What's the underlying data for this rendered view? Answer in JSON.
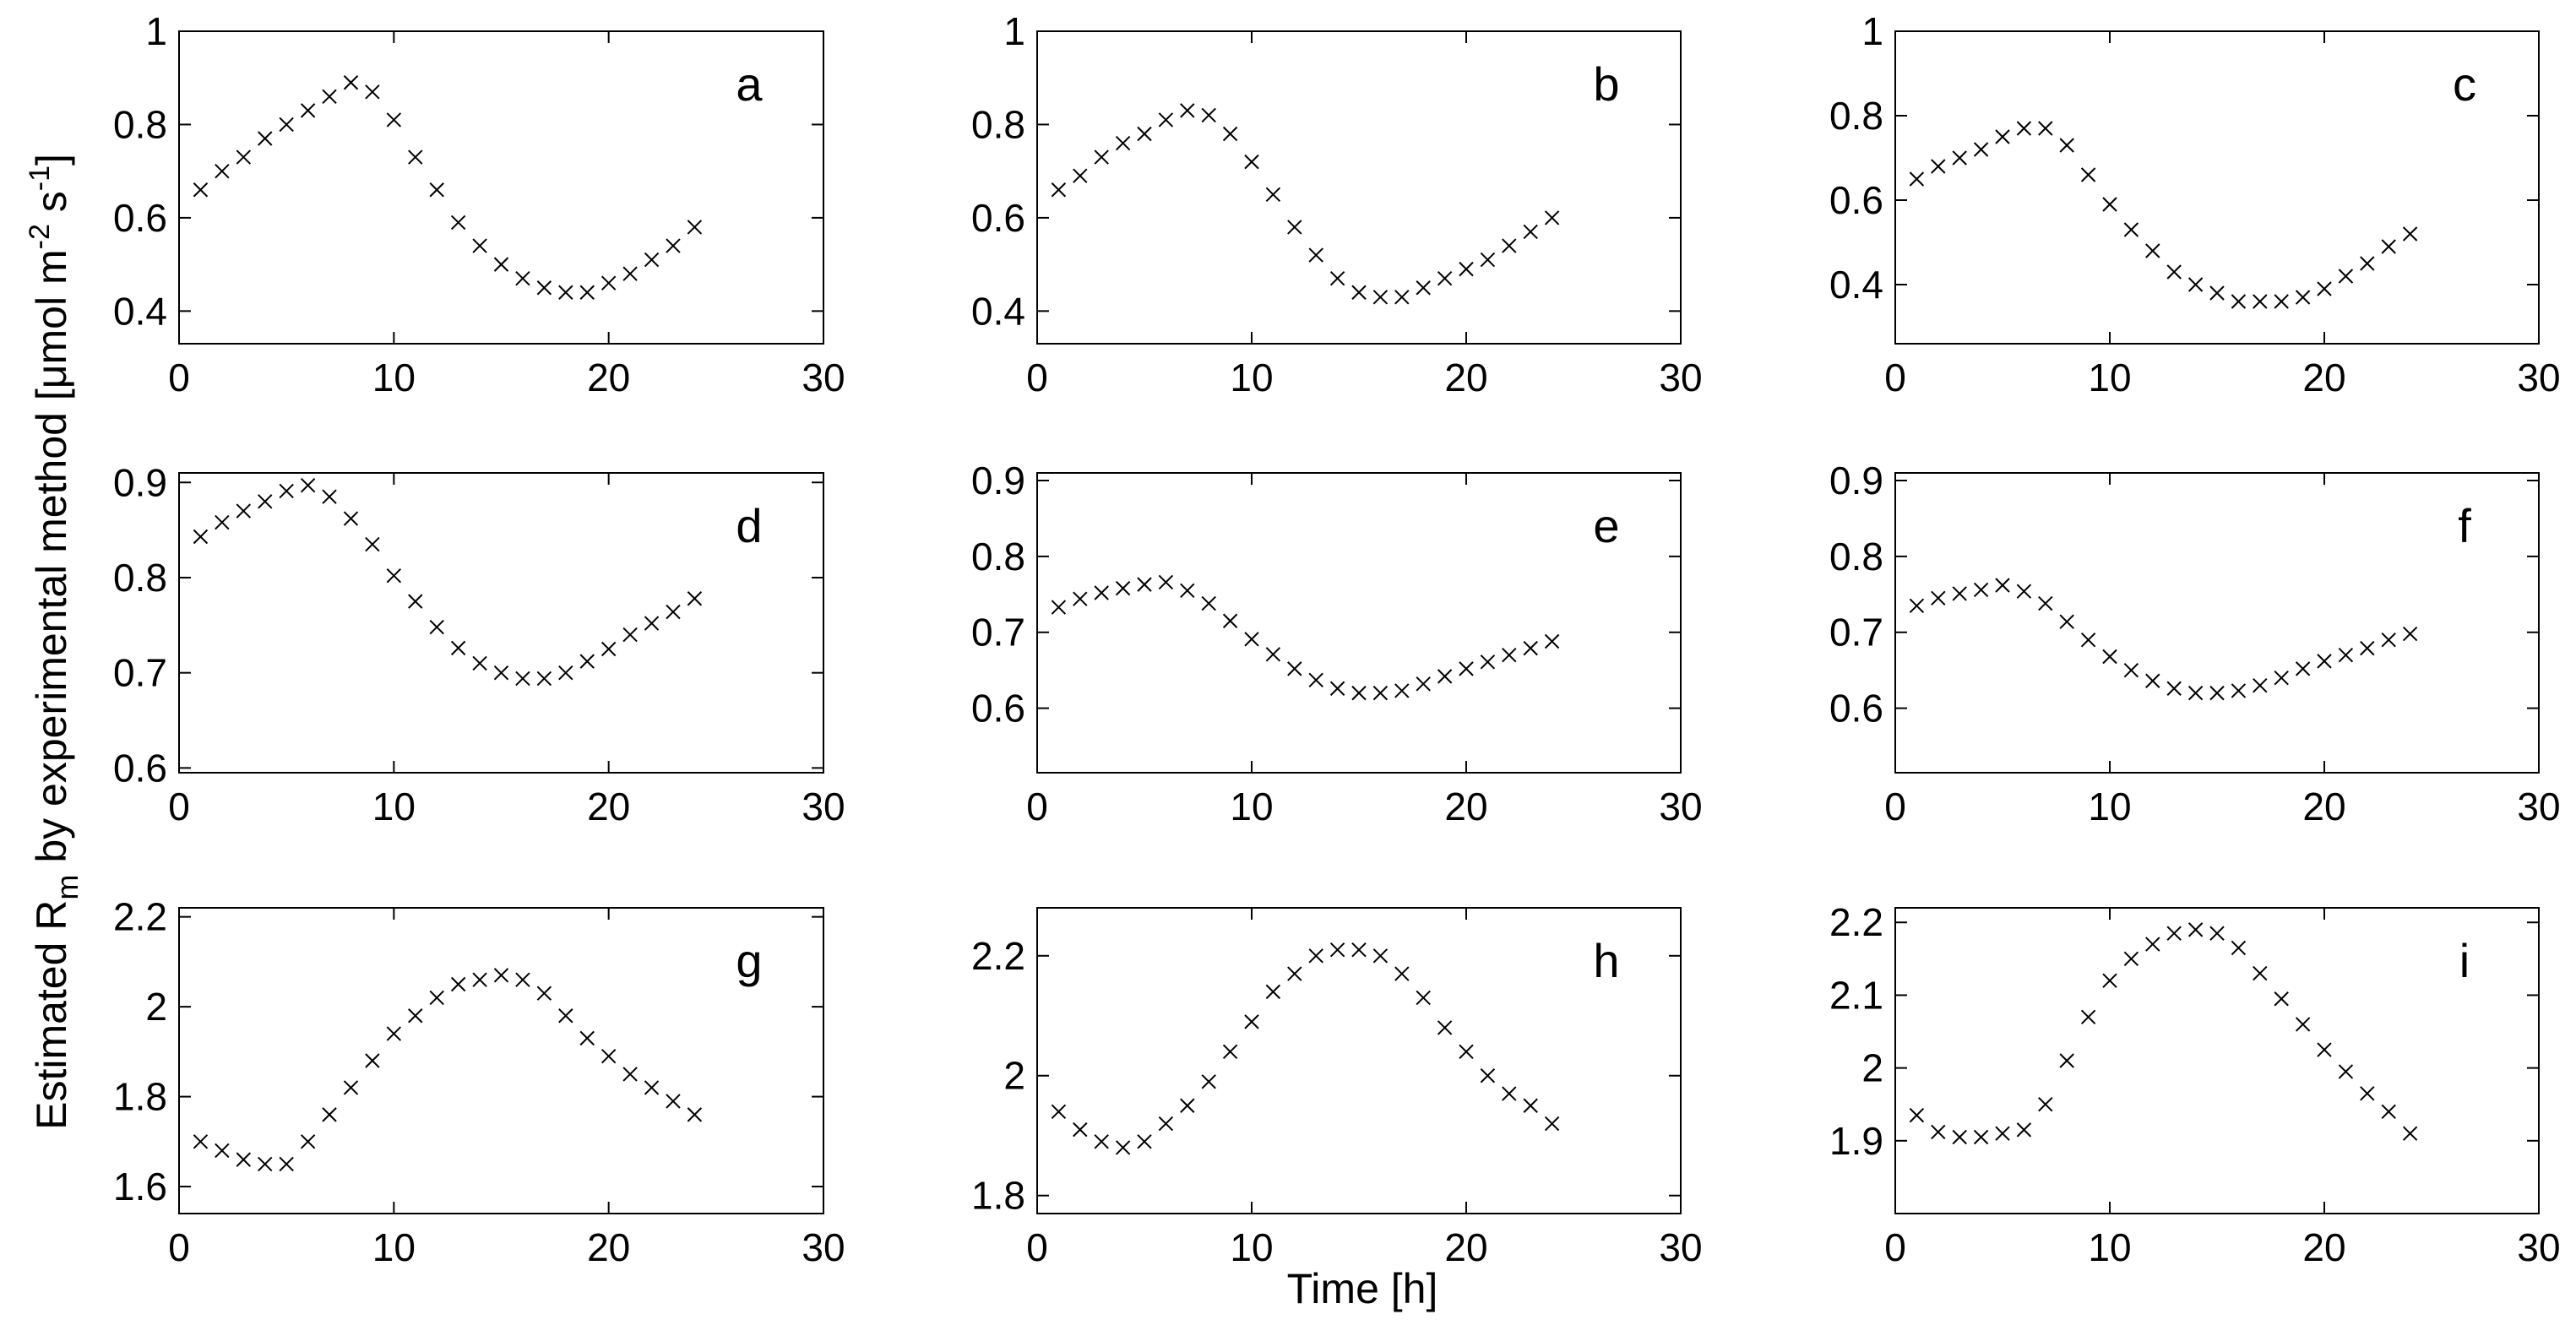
{
  "figure": {
    "ylabel_main": "Estimated R",
    "ylabel_sub": "m",
    "ylabel_rest": " by experimental method [",
    "ylabel_mu": "μ",
    "ylabel_mol": "mol m",
    "ylabel_exp1": "-2",
    "ylabel_s": " s",
    "ylabel_exp2": "-1",
    "ylabel_end": "]",
    "xlabel": "Time [h]"
  },
  "chart_data": [
    {
      "type": "scatter",
      "panel_label": "a",
      "marker": "x",
      "xlim": [
        0,
        30
      ],
      "ylim": [
        0.33,
        1.0
      ],
      "xticks": [
        "0",
        "10",
        "20",
        "30"
      ],
      "yticks": [
        {
          "v": 0.4,
          "t": "0.4"
        },
        {
          "v": 0.6,
          "t": "0.6"
        },
        {
          "v": 0.8,
          "t": "0.8"
        },
        {
          "v": 1.0,
          "t": "1"
        }
      ],
      "x": [
        1,
        2,
        3,
        4,
        5,
        6,
        7,
        8,
        9,
        10,
        11,
        12,
        13,
        14,
        15,
        16,
        17,
        18,
        19,
        20,
        21,
        22,
        23,
        24
      ],
      "y": [
        0.66,
        0.7,
        0.73,
        0.77,
        0.8,
        0.83,
        0.86,
        0.89,
        0.87,
        0.81,
        0.73,
        0.66,
        0.59,
        0.54,
        0.5,
        0.47,
        0.45,
        0.44,
        0.44,
        0.46,
        0.48,
        0.51,
        0.54,
        0.58
      ]
    },
    {
      "type": "scatter",
      "panel_label": "b",
      "marker": "x",
      "xlim": [
        0,
        30
      ],
      "ylim": [
        0.33,
        1.0
      ],
      "xticks": [
        "0",
        "10",
        "20",
        "30"
      ],
      "yticks": [
        {
          "v": 0.4,
          "t": "0.4"
        },
        {
          "v": 0.6,
          "t": "0.6"
        },
        {
          "v": 0.8,
          "t": "0.8"
        },
        {
          "v": 1.0,
          "t": "1"
        }
      ],
      "x": [
        1,
        2,
        3,
        4,
        5,
        6,
        7,
        8,
        9,
        10,
        11,
        12,
        13,
        14,
        15,
        16,
        17,
        18,
        19,
        20,
        21,
        22,
        23,
        24
      ],
      "y": [
        0.66,
        0.69,
        0.73,
        0.76,
        0.78,
        0.81,
        0.83,
        0.82,
        0.78,
        0.72,
        0.65,
        0.58,
        0.52,
        0.47,
        0.44,
        0.43,
        0.43,
        0.45,
        0.47,
        0.49,
        0.51,
        0.54,
        0.57,
        0.6
      ]
    },
    {
      "type": "scatter",
      "panel_label": "c",
      "marker": "x",
      "xlim": [
        0,
        30
      ],
      "ylim": [
        0.26,
        1.0
      ],
      "xticks": [
        "0",
        "10",
        "20",
        "30"
      ],
      "yticks": [
        {
          "v": 0.4,
          "t": "0.4"
        },
        {
          "v": 0.6,
          "t": "0.6"
        },
        {
          "v": 0.8,
          "t": "0.8"
        },
        {
          "v": 1.0,
          "t": "1"
        }
      ],
      "x": [
        1,
        2,
        3,
        4,
        5,
        6,
        7,
        8,
        9,
        10,
        11,
        12,
        13,
        14,
        15,
        16,
        17,
        18,
        19,
        20,
        21,
        22,
        23,
        24
      ],
      "y": [
        0.65,
        0.68,
        0.7,
        0.72,
        0.75,
        0.77,
        0.77,
        0.73,
        0.66,
        0.59,
        0.53,
        0.48,
        0.43,
        0.4,
        0.38,
        0.36,
        0.36,
        0.36,
        0.37,
        0.39,
        0.42,
        0.45,
        0.49,
        0.52
      ]
    },
    {
      "type": "scatter",
      "panel_label": "d",
      "marker": "x",
      "xlim": [
        0,
        30
      ],
      "ylim": [
        0.595,
        0.91
      ],
      "xticks": [
        "0",
        "10",
        "20",
        "30"
      ],
      "yticks": [
        {
          "v": 0.6,
          "t": "0.6"
        },
        {
          "v": 0.7,
          "t": "0.7"
        },
        {
          "v": 0.8,
          "t": "0.8"
        },
        {
          "v": 0.9,
          "t": "0.9"
        }
      ],
      "x": [
        1,
        2,
        3,
        4,
        5,
        6,
        7,
        8,
        9,
        10,
        11,
        12,
        13,
        14,
        15,
        16,
        17,
        18,
        19,
        20,
        21,
        22,
        23,
        24
      ],
      "y": [
        0.843,
        0.858,
        0.87,
        0.88,
        0.891,
        0.897,
        0.885,
        0.862,
        0.835,
        0.802,
        0.775,
        0.748,
        0.726,
        0.71,
        0.7,
        0.694,
        0.694,
        0.7,
        0.712,
        0.725,
        0.74,
        0.752,
        0.764,
        0.778
      ]
    },
    {
      "type": "scatter",
      "panel_label": "e",
      "marker": "x",
      "xlim": [
        0,
        30
      ],
      "ylim": [
        0.515,
        0.91
      ],
      "xticks": [
        "0",
        "10",
        "20",
        "30"
      ],
      "yticks": [
        {
          "v": 0.6,
          "t": "0.6"
        },
        {
          "v": 0.7,
          "t": "0.7"
        },
        {
          "v": 0.8,
          "t": "0.8"
        },
        {
          "v": 0.9,
          "t": "0.9"
        }
      ],
      "x": [
        1,
        2,
        3,
        4,
        5,
        6,
        7,
        8,
        9,
        10,
        11,
        12,
        13,
        14,
        15,
        16,
        17,
        18,
        19,
        20,
        21,
        22,
        23,
        24
      ],
      "y": [
        0.733,
        0.744,
        0.752,
        0.758,
        0.763,
        0.766,
        0.755,
        0.738,
        0.715,
        0.691,
        0.671,
        0.652,
        0.637,
        0.626,
        0.62,
        0.62,
        0.623,
        0.632,
        0.642,
        0.652,
        0.661,
        0.67,
        0.679,
        0.688
      ]
    },
    {
      "type": "scatter",
      "panel_label": "f",
      "marker": "x",
      "xlim": [
        0,
        30
      ],
      "ylim": [
        0.515,
        0.91
      ],
      "xticks": [
        "0",
        "10",
        "20",
        "30"
      ],
      "yticks": [
        {
          "v": 0.6,
          "t": "0.6"
        },
        {
          "v": 0.7,
          "t": "0.7"
        },
        {
          "v": 0.8,
          "t": "0.8"
        },
        {
          "v": 0.9,
          "t": "0.9"
        }
      ],
      "x": [
        1,
        2,
        3,
        4,
        5,
        6,
        7,
        8,
        9,
        10,
        11,
        12,
        13,
        14,
        15,
        16,
        17,
        18,
        19,
        20,
        21,
        22,
        23,
        24
      ],
      "y": [
        0.735,
        0.745,
        0.751,
        0.756,
        0.762,
        0.754,
        0.738,
        0.714,
        0.69,
        0.668,
        0.65,
        0.636,
        0.626,
        0.62,
        0.62,
        0.623,
        0.63,
        0.64,
        0.652,
        0.662,
        0.67,
        0.679,
        0.69,
        0.698
      ]
    },
    {
      "type": "scatter",
      "panel_label": "g",
      "marker": "x",
      "xlim": [
        0,
        30
      ],
      "ylim": [
        1.54,
        2.22
      ],
      "xticks": [
        "0",
        "10",
        "20",
        "30"
      ],
      "yticks": [
        {
          "v": 1.6,
          "t": "1.6"
        },
        {
          "v": 1.8,
          "t": "1.8"
        },
        {
          "v": 2.0,
          "t": "2"
        },
        {
          "v": 2.2,
          "t": "2.2"
        }
      ],
      "x": [
        1,
        2,
        3,
        4,
        5,
        6,
        7,
        8,
        9,
        10,
        11,
        12,
        13,
        14,
        15,
        16,
        17,
        18,
        19,
        20,
        21,
        22,
        23,
        24
      ],
      "y": [
        1.7,
        1.68,
        1.66,
        1.65,
        1.65,
        1.7,
        1.76,
        1.82,
        1.88,
        1.94,
        1.98,
        2.02,
        2.05,
        2.06,
        2.07,
        2.06,
        2.03,
        1.98,
        1.93,
        1.89,
        1.85,
        1.82,
        1.79,
        1.76
      ]
    },
    {
      "type": "scatter",
      "panel_label": "h",
      "marker": "x",
      "xlim": [
        0,
        30
      ],
      "ylim": [
        1.77,
        2.28
      ],
      "xticks": [
        "0",
        "10",
        "20",
        "30"
      ],
      "yticks": [
        {
          "v": 1.8,
          "t": "1.8"
        },
        {
          "v": 2.0,
          "t": "2"
        },
        {
          "v": 2.2,
          "t": "2.2"
        }
      ],
      "x": [
        1,
        2,
        3,
        4,
        5,
        6,
        7,
        8,
        9,
        10,
        11,
        12,
        13,
        14,
        15,
        16,
        17,
        18,
        19,
        20,
        21,
        22,
        23,
        24
      ],
      "y": [
        1.94,
        1.91,
        1.89,
        1.88,
        1.89,
        1.92,
        1.95,
        1.99,
        2.04,
        2.09,
        2.14,
        2.17,
        2.2,
        2.21,
        2.21,
        2.2,
        2.17,
        2.13,
        2.08,
        2.04,
        2.0,
        1.97,
        1.95,
        1.92
      ]
    },
    {
      "type": "scatter",
      "panel_label": "i",
      "marker": "x",
      "xlim": [
        0,
        30
      ],
      "ylim": [
        1.8,
        2.22
      ],
      "xticks": [
        "0",
        "10",
        "20",
        "30"
      ],
      "yticks": [
        {
          "v": 1.9,
          "t": "1.9"
        },
        {
          "v": 2.0,
          "t": "2"
        },
        {
          "v": 2.1,
          "t": "2.1"
        },
        {
          "v": 2.2,
          "t": "2.2"
        }
      ],
      "x": [
        1,
        2,
        3,
        4,
        5,
        6,
        7,
        8,
        9,
        10,
        11,
        12,
        13,
        14,
        15,
        16,
        17,
        18,
        19,
        20,
        21,
        22,
        23,
        24
      ],
      "y": [
        1.935,
        1.912,
        1.905,
        1.905,
        1.91,
        1.915,
        1.95,
        2.01,
        2.07,
        2.12,
        2.15,
        2.17,
        2.185,
        2.19,
        2.185,
        2.165,
        2.13,
        2.095,
        2.06,
        2.025,
        1.995,
        1.965,
        1.94,
        1.91
      ]
    }
  ]
}
